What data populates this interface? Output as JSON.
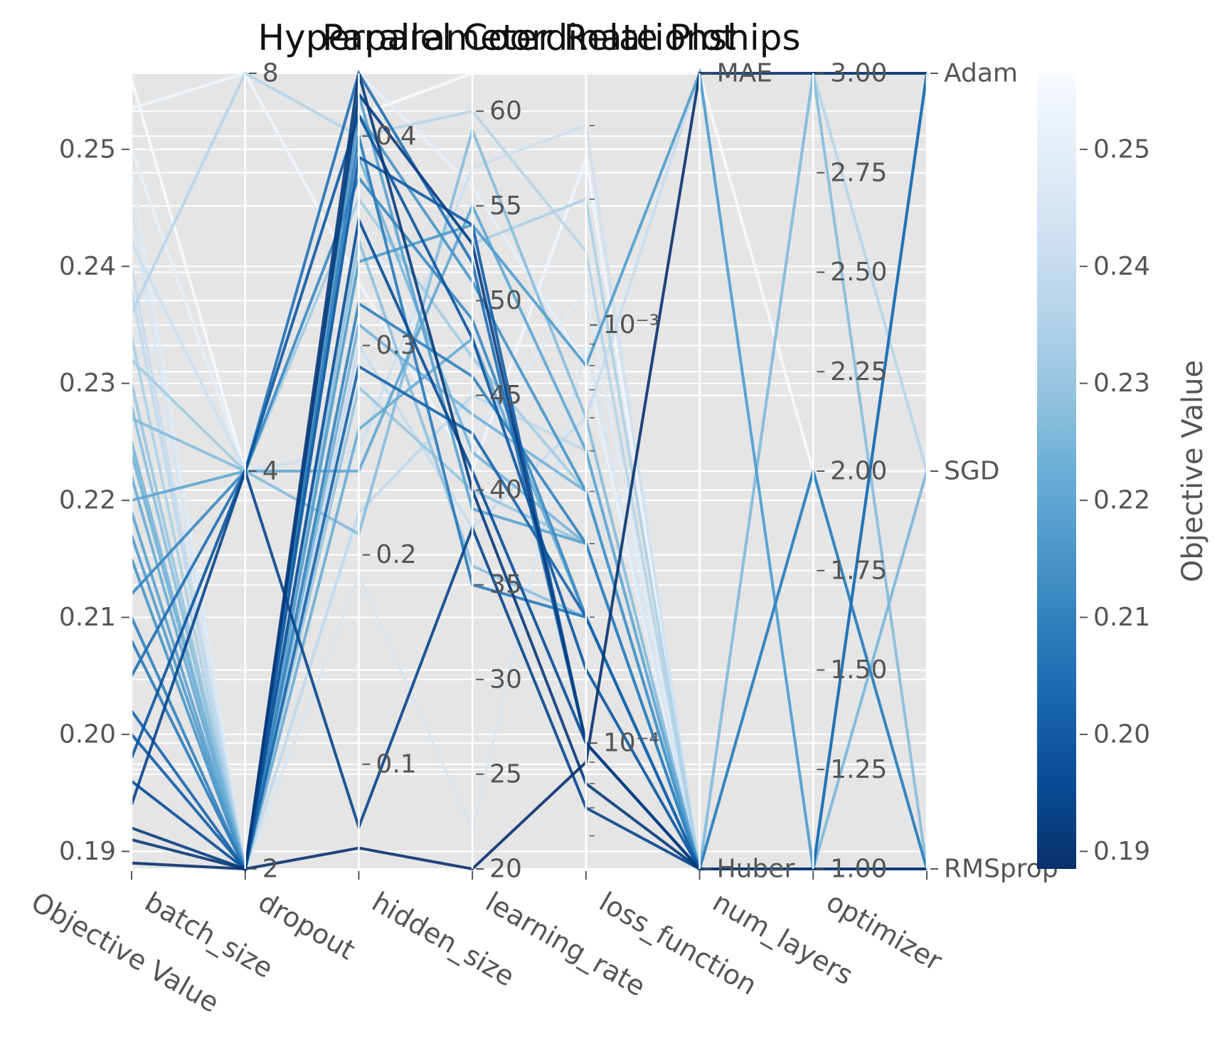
{
  "chart_data": {
    "type": "parallel-coordinates",
    "title_lines": [
      "Parallel Coordinate Plot",
      "Hyperparameter Relationships"
    ],
    "axes": [
      {
        "name": "Objective Value",
        "scale": "linear",
        "range": [
          0.1885,
          0.2565
        ],
        "ticks": [
          "0.19",
          "0.20",
          "0.21",
          "0.22",
          "0.23",
          "0.24",
          "0.25"
        ]
      },
      {
        "name": "batch_size",
        "scale": "log2",
        "range": [
          2,
          8
        ],
        "ticks": [
          "2",
          "4",
          "8"
        ]
      },
      {
        "name": "dropout",
        "scale": "linear",
        "range": [
          0.05,
          0.43
        ],
        "ticks": [
          "0.1",
          "0.2",
          "0.3",
          "0.4"
        ]
      },
      {
        "name": "hidden_size",
        "scale": "linear",
        "range": [
          20,
          62
        ],
        "ticks": [
          "20",
          "25",
          "30",
          "35",
          "40",
          "45",
          "50",
          "55",
          "60"
        ]
      },
      {
        "name": "learning_rate",
        "scale": "log",
        "range": [
          5e-05,
          0.004
        ],
        "ticks": [
          "10⁻⁴",
          "10⁻³"
        ]
      },
      {
        "name": "loss_function",
        "scale": "categorical",
        "range": [
          "Huber",
          "MAE"
        ],
        "ticks": [
          "Huber",
          "MAE"
        ]
      },
      {
        "name": "num_layers",
        "scale": "linear",
        "range": [
          1,
          3
        ],
        "ticks": [
          "1.00",
          "1.25",
          "1.50",
          "1.75",
          "2.00",
          "2.25",
          "2.50",
          "2.75",
          "3.00"
        ]
      },
      {
        "name": "optimizer",
        "scale": "categorical",
        "range": [
          "RMSprop",
          "SGD",
          "Adam"
        ],
        "ticks": [
          "RMSprop",
          "SGD",
          "Adam"
        ]
      }
    ],
    "colorbar": {
      "label": "Objective Value",
      "colormap": "Blues_r",
      "range": [
        0.1885,
        0.2565
      ],
      "ticks": [
        "0.19",
        "0.20",
        "0.21",
        "0.22",
        "0.23",
        "0.24",
        "0.25"
      ]
    },
    "series": [
      {
        "values": [
          0.256,
          4,
          0.41,
          62,
          0.004,
          "MAE",
          2,
          "SGD"
        ]
      },
      {
        "values": [
          0.2535,
          8,
          0.33,
          41,
          0.0025,
          "Huber",
          1,
          "RMSprop"
        ]
      },
      {
        "values": [
          0.25,
          4,
          0.43,
          56,
          0.0008,
          "Huber",
          3,
          "Adam"
        ]
      },
      {
        "values": [
          0.248,
          2,
          0.36,
          43,
          0.0012,
          "Huber",
          1,
          "SGD"
        ]
      },
      {
        "values": [
          0.245,
          2,
          0.19,
          22,
          0.0009,
          "Huber",
          1,
          "Adam"
        ]
      },
      {
        "values": [
          0.242,
          4,
          0.25,
          57,
          0.003,
          "Huber",
          3,
          "RMSprop"
        ]
      },
      {
        "values": [
          0.24,
          2,
          0.3,
          38,
          0.0006,
          "MAE",
          1,
          "Adam"
        ]
      },
      {
        "values": [
          0.238,
          2,
          0.22,
          45,
          0.0005,
          "Huber",
          1,
          "RMSprop"
        ]
      },
      {
        "values": [
          0.236,
          8,
          0.4,
          60,
          0.0015,
          "Huber",
          3,
          "SGD"
        ]
      },
      {
        "values": [
          0.234,
          2,
          0.42,
          53,
          0.002,
          "Huber",
          1,
          "RMSprop"
        ]
      },
      {
        "values": [
          0.232,
          4,
          0.37,
          47,
          0.0004,
          "Huber",
          3,
          "Adam"
        ]
      },
      {
        "values": [
          0.23,
          2,
          0.28,
          40,
          0.0003,
          "Huber",
          1,
          "RMSprop"
        ]
      },
      {
        "values": [
          0.228,
          2,
          0.35,
          36,
          0.0002,
          "Huber",
          1,
          "Adam"
        ]
      },
      {
        "values": [
          0.227,
          4,
          0.21,
          59,
          0.0006,
          "Huber",
          3,
          "RMSprop"
        ]
      },
      {
        "values": [
          0.225,
          2,
          0.39,
          42,
          0.0003,
          "Huber",
          1,
          "SGD"
        ]
      },
      {
        "values": [
          0.224,
          2,
          0.31,
          44,
          0.0004,
          "Huber",
          1,
          "RMSprop"
        ]
      },
      {
        "values": [
          0.222,
          2,
          0.26,
          48,
          0.0002,
          "Huber",
          1,
          "Adam"
        ]
      },
      {
        "values": [
          0.22,
          4,
          0.24,
          55,
          0.0005,
          "Huber",
          1,
          "RMSprop"
        ]
      },
      {
        "values": [
          0.219,
          2,
          0.42,
          39,
          0.0003,
          "Huber",
          2,
          "RMSprop"
        ]
      },
      {
        "values": [
          0.217,
          2,
          0.34,
          54,
          0.0008,
          "MAE",
          1,
          "RMSprop"
        ]
      },
      {
        "values": [
          0.215,
          2,
          0.41,
          51,
          0.0004,
          "Huber",
          1,
          "Adam"
        ]
      },
      {
        "values": [
          0.212,
          4,
          0.38,
          49,
          0.0002,
          "Huber",
          1,
          "RMSprop"
        ]
      },
      {
        "values": [
          0.21,
          2,
          0.32,
          46,
          0.0003,
          "Huber",
          2,
          "RMSprop"
        ]
      },
      {
        "values": [
          0.208,
          2,
          0.4,
          35,
          0.0002,
          "Huber",
          1,
          "RMSprop"
        ]
      },
      {
        "values": [
          0.205,
          4,
          0.43,
          52,
          0.0001,
          "Huber",
          1,
          "Adam"
        ]
      },
      {
        "values": [
          0.202,
          2,
          0.29,
          43,
          0.0002,
          "Huber",
          1,
          "RMSprop"
        ]
      },
      {
        "values": [
          0.2,
          2,
          0.39,
          54,
          0.0001,
          "Huber",
          1,
          "RMSprop"
        ]
      },
      {
        "values": [
          0.198,
          4,
          0.41,
          48,
          0.00015,
          "Huber",
          1,
          "RMSprop"
        ]
      },
      {
        "values": [
          0.196,
          2,
          0.36,
          41,
          0.0001,
          "Huber",
          1,
          "RMSprop"
        ]
      },
      {
        "values": [
          0.194,
          4,
          0.07,
          38,
          7e-05,
          "Huber",
          1,
          "RMSprop"
        ]
      },
      {
        "values": [
          0.192,
          2,
          0.42,
          53,
          0.0001,
          "Huber",
          1,
          "RMSprop"
        ]
      },
      {
        "values": [
          0.191,
          2,
          0.43,
          40,
          8e-05,
          "Huber",
          1,
          "RMSprop"
        ]
      },
      {
        "values": [
          0.189,
          2,
          0.06,
          20,
          9e-05,
          "MAE",
          3,
          "Adam"
        ]
      }
    ]
  }
}
